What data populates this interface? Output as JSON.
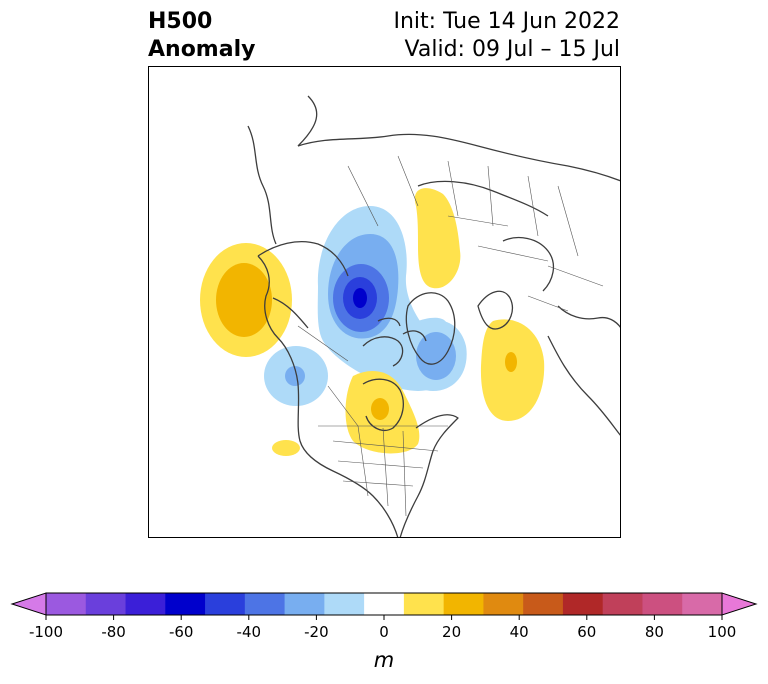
{
  "title": {
    "line1": "H500",
    "line2": "Anomaly",
    "init": "Init: Tue 14 Jun 2022",
    "valid": "Valid: 09 Jul – 15 Jul"
  },
  "colorbar": {
    "unit": "m",
    "ticks": [
      "-100",
      "-80",
      "-60",
      "-40",
      "-20",
      "0",
      "20",
      "40",
      "60",
      "80",
      "100"
    ],
    "colors": [
      "#d57ae8",
      "#9b59e0",
      "#6a3fdc",
      "#3b1fd8",
      "#0000cc",
      "#2a3fdc",
      "#4d74e5",
      "#78aef0",
      "#aedaf8",
      "#ffffff",
      "#ffe24d",
      "#f2b500",
      "#e08a10",
      "#c85a1a",
      "#b02828",
      "#c0405a",
      "#cc5080",
      "#d86aa8",
      "#e878d8"
    ]
  },
  "anomalies": [
    {
      "region": "north-pacific",
      "sign": "positive",
      "peak": 30
    },
    {
      "region": "arctic-canada",
      "sign": "negative",
      "peak": -60
    },
    {
      "region": "siberia",
      "sign": "positive",
      "peak": 20
    },
    {
      "region": "greenland-baffin",
      "sign": "negative",
      "peak": -30
    },
    {
      "region": "gulf-of-alaska",
      "sign": "negative",
      "peak": -30
    },
    {
      "region": "central-canada",
      "sign": "positive",
      "peak": 20
    },
    {
      "region": "north-atlantic",
      "sign": "positive",
      "peak": 30
    },
    {
      "region": "eastern-pacific-low-lat",
      "sign": "positive",
      "peak": 20
    }
  ]
}
